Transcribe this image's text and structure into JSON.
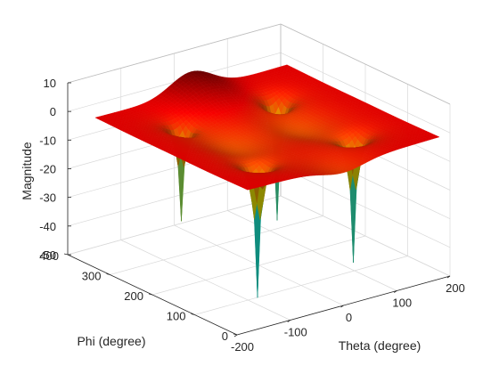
{
  "chart_data": {
    "type": "surface",
    "title": "",
    "xlabel": "Theta (degree)",
    "ylabel": "Phi (degree)",
    "zlabel": "Magnitude",
    "xlim": [
      -200,
      200
    ],
    "ylim": [
      0,
      400
    ],
    "zlim": [
      -50,
      10
    ],
    "x_ticks": [
      -200,
      -100,
      0,
      100,
      200
    ],
    "y_ticks": [
      0,
      100,
      200,
      300,
      400
    ],
    "z_ticks": [
      -50,
      -40,
      -30,
      -20,
      -10,
      0,
      10
    ],
    "x_tick_labels": [
      "-200",
      "-100",
      "0",
      "100",
      "200"
    ],
    "y_tick_labels": [
      "0",
      "100",
      "200",
      "300",
      "400"
    ],
    "z_tick_labels": [
      "-50",
      "-40",
      "-30",
      "-20",
      "-10",
      "0",
      "10"
    ],
    "colormap": "jet",
    "grid": true,
    "surface": {
      "theta_range": [
        -180,
        180
      ],
      "phi_range": [
        0,
        360
      ],
      "baseline": 0,
      "ripple": [
        {
          "theta": 0,
          "phi": 360,
          "value": 7
        },
        {
          "theta": 60,
          "phi": 180,
          "value": -4
        },
        {
          "theta": -60,
          "phi": 180,
          "value": -4
        },
        {
          "theta": 0,
          "phi": 0,
          "value": -3
        }
      ],
      "nulls": [
        {
          "theta": -90,
          "phi": 90,
          "depth": -48
        },
        {
          "theta": 90,
          "phi": 90,
          "depth": -45
        },
        {
          "theta": 90,
          "phi": 270,
          "depth": -43
        },
        {
          "theta": -90,
          "phi": 270,
          "depth": -34
        }
      ]
    }
  }
}
